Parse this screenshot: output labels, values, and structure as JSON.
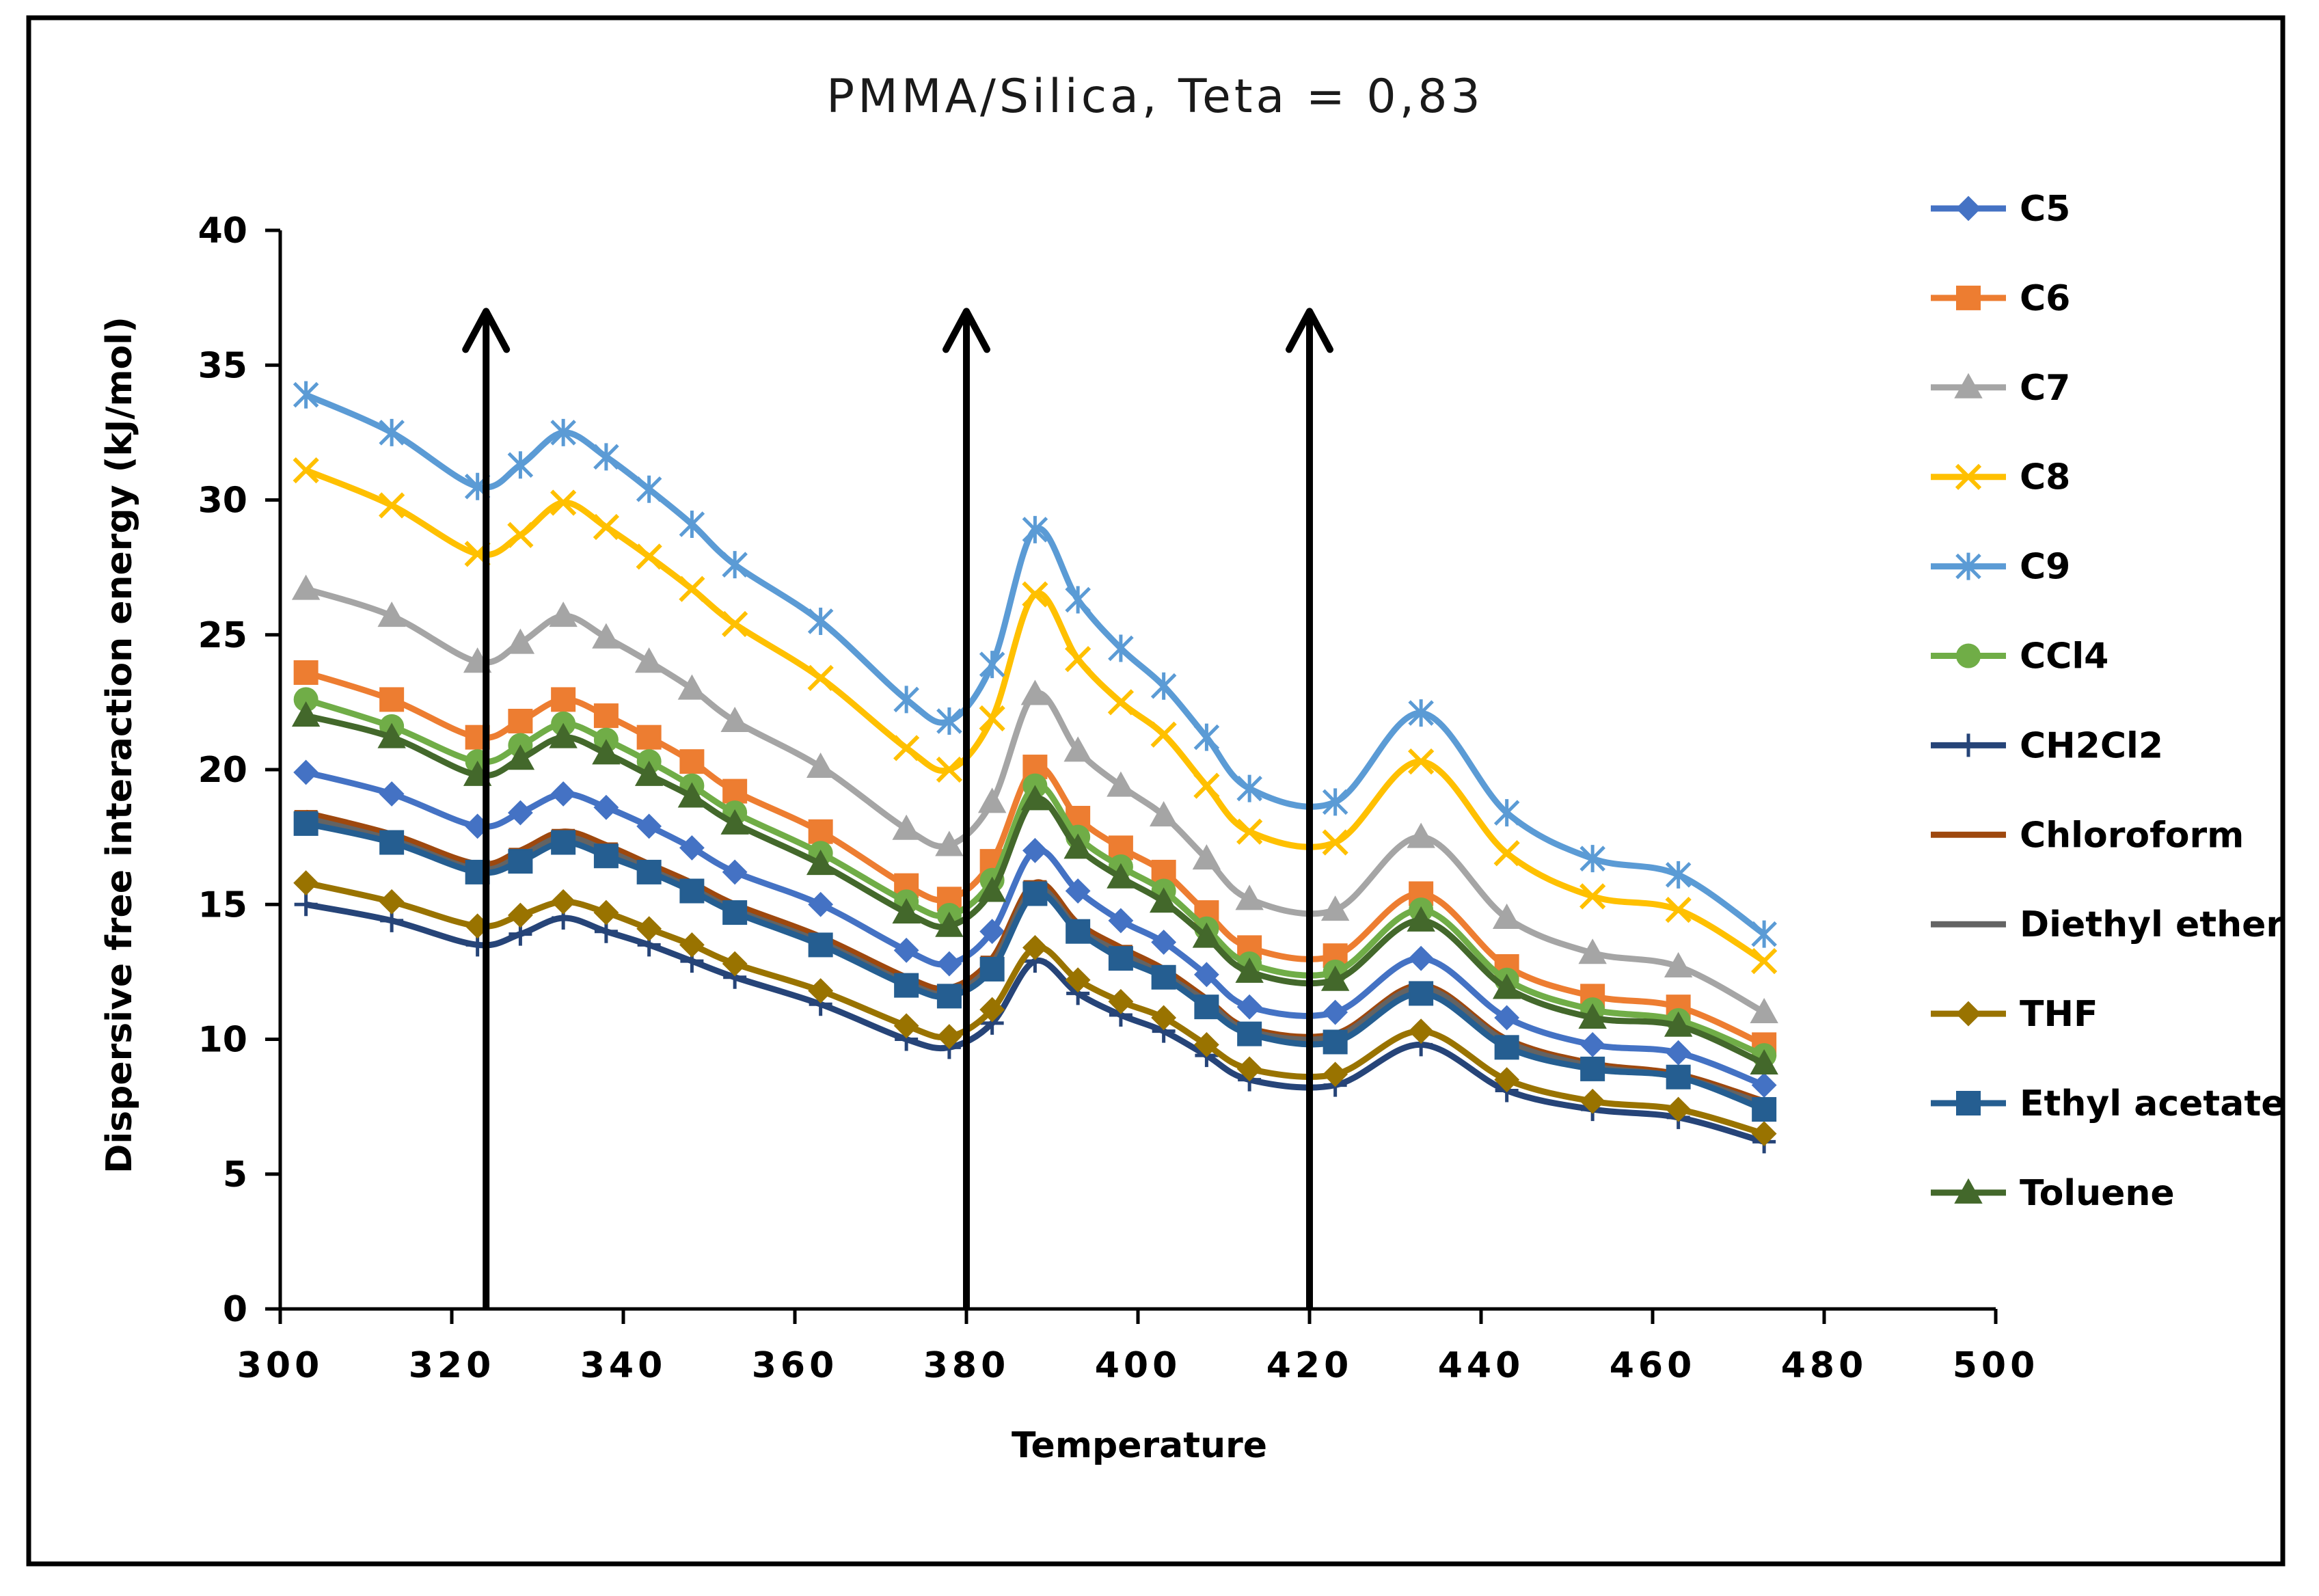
{
  "chart_data": {
    "type": "line",
    "title": "PMMA/Silica, Teta = 0,83",
    "xlabel": "Temperature",
    "ylabel": "Dispersive free interaction energy (kJ/mol)",
    "xlim": [
      300,
      500
    ],
    "ylim": [
      0,
      40
    ],
    "xticks": [
      "300",
      "320",
      "340",
      "360",
      "380",
      "400",
      "420",
      "440",
      "460",
      "480",
      "500"
    ],
    "yticks": [
      "0",
      "5",
      "10",
      "15",
      "20",
      "25",
      "30",
      "35",
      "40"
    ],
    "x": [
      303,
      313,
      323,
      328,
      333,
      338,
      343,
      348,
      353,
      363,
      373,
      378,
      383,
      388,
      393,
      398,
      403,
      408,
      413,
      423,
      433,
      443,
      453,
      463,
      473
    ],
    "series": [
      {
        "name": "C5",
        "color": "#4472C4",
        "marker": "diamond",
        "values": [
          19.9,
          19.1,
          17.9,
          18.4,
          19.1,
          18.6,
          17.9,
          17.1,
          16.2,
          15.0,
          13.3,
          12.8,
          14.0,
          17.0,
          15.5,
          14.4,
          13.6,
          12.4,
          11.2,
          11.0,
          13.0,
          10.8,
          9.8,
          9.5,
          8.3
        ]
      },
      {
        "name": "C6",
        "color": "#ED7D31",
        "marker": "square",
        "values": [
          23.6,
          22.6,
          21.2,
          21.8,
          22.6,
          22.0,
          21.2,
          20.3,
          19.2,
          17.7,
          15.7,
          15.2,
          16.6,
          20.1,
          18.2,
          17.1,
          16.2,
          14.7,
          13.4,
          13.1,
          15.4,
          12.7,
          11.6,
          11.2,
          9.8
        ]
      },
      {
        "name": "C7",
        "color": "#A5A5A5",
        "marker": "triangle",
        "values": [
          26.7,
          25.7,
          24.0,
          24.7,
          25.7,
          24.9,
          24.0,
          23.0,
          21.8,
          20.1,
          17.8,
          17.2,
          18.8,
          22.8,
          20.7,
          19.4,
          18.3,
          16.7,
          15.2,
          14.8,
          17.5,
          14.5,
          13.2,
          12.7,
          11.0
        ]
      },
      {
        "name": "C8",
        "color": "#FFC000",
        "marker": "x",
        "values": [
          31.1,
          29.8,
          28.0,
          28.7,
          29.9,
          29.0,
          27.9,
          26.7,
          25.4,
          23.4,
          20.8,
          20.0,
          21.9,
          26.5,
          24.1,
          22.5,
          21.3,
          19.4,
          17.7,
          17.3,
          20.3,
          16.9,
          15.3,
          14.8,
          12.9
        ]
      },
      {
        "name": "C9",
        "color": "#5B9BD5",
        "marker": "star",
        "values": [
          33.9,
          32.5,
          30.5,
          31.3,
          32.5,
          31.6,
          30.4,
          29.1,
          27.6,
          25.5,
          22.6,
          21.8,
          23.9,
          28.9,
          26.3,
          24.5,
          23.1,
          21.2,
          19.3,
          18.8,
          22.1,
          18.4,
          16.7,
          16.1,
          13.9
        ]
      },
      {
        "name": "CCl4",
        "color": "#70AD47",
        "marker": "circle",
        "values": [
          22.6,
          21.6,
          20.3,
          20.9,
          21.7,
          21.1,
          20.3,
          19.4,
          18.4,
          16.9,
          15.1,
          14.6,
          15.9,
          19.4,
          17.5,
          16.4,
          15.5,
          14.1,
          12.8,
          12.5,
          14.8,
          12.2,
          11.1,
          10.7,
          9.4
        ]
      },
      {
        "name": "CH2Cl2",
        "color": "#264478",
        "marker": "plus",
        "values": [
          15.0,
          14.4,
          13.5,
          13.9,
          14.5,
          14.0,
          13.5,
          12.9,
          12.3,
          11.3,
          10.0,
          9.7,
          10.6,
          12.9,
          11.7,
          10.9,
          10.3,
          9.4,
          8.5,
          8.3,
          9.8,
          8.1,
          7.4,
          7.1,
          6.2
        ]
      },
      {
        "name": "Chloroform",
        "color": "#9E480E",
        "marker": "dash",
        "values": [
          18.4,
          17.6,
          16.5,
          17.0,
          17.7,
          17.2,
          16.5,
          15.8,
          15.0,
          13.8,
          12.3,
          11.9,
          13.0,
          15.8,
          14.3,
          13.4,
          12.6,
          11.5,
          10.4,
          10.2,
          12.0,
          10.0,
          9.1,
          8.7,
          7.7
        ]
      },
      {
        "name": "Diethyl ether",
        "color": "#636363",
        "marker": "dash",
        "values": [
          18.2,
          17.4,
          16.3,
          16.8,
          17.5,
          17.0,
          16.3,
          15.6,
          14.8,
          13.6,
          12.1,
          11.7,
          12.8,
          15.6,
          14.1,
          13.2,
          12.4,
          11.4,
          10.3,
          10.1,
          11.9,
          9.9,
          9.0,
          8.6,
          7.6
        ]
      },
      {
        "name": "THF",
        "color": "#997300",
        "marker": "diamond",
        "values": [
          15.8,
          15.1,
          14.2,
          14.6,
          15.1,
          14.7,
          14.1,
          13.5,
          12.8,
          11.8,
          10.5,
          10.1,
          11.1,
          13.4,
          12.2,
          11.4,
          10.8,
          9.8,
          8.9,
          8.7,
          10.3,
          8.5,
          7.7,
          7.4,
          6.5
        ]
      },
      {
        "name": "Ethyl acetate",
        "color": "#255E91",
        "marker": "square",
        "values": [
          18.0,
          17.3,
          16.2,
          16.6,
          17.3,
          16.8,
          16.2,
          15.5,
          14.7,
          13.5,
          12.0,
          11.6,
          12.6,
          15.4,
          14.0,
          13.0,
          12.3,
          11.2,
          10.2,
          9.9,
          11.7,
          9.7,
          8.9,
          8.6,
          7.4
        ]
      },
      {
        "name": "Toluene",
        "color": "#43682B",
        "marker": "triangle",
        "values": [
          22.0,
          21.2,
          19.8,
          20.4,
          21.2,
          20.6,
          19.8,
          19.0,
          18.0,
          16.5,
          14.7,
          14.2,
          15.5,
          18.9,
          17.1,
          16.0,
          15.1,
          13.8,
          12.5,
          12.2,
          14.4,
          11.9,
          10.8,
          10.5,
          9.1
        ]
      }
    ],
    "annotations": [
      {
        "type": "arrow",
        "x": 324,
        "from_y": 0,
        "to_y": 37
      },
      {
        "type": "arrow",
        "x": 380,
        "from_y": 0,
        "to_y": 37
      },
      {
        "type": "arrow",
        "x": 420,
        "from_y": 0,
        "to_y": 37
      }
    ],
    "legend_position": "right",
    "grid": false
  }
}
